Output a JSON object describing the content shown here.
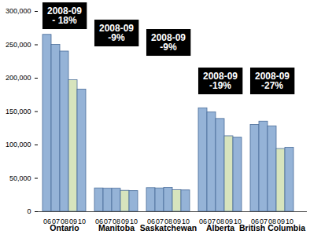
{
  "chart_data": {
    "type": "bar",
    "categories": [
      "Ontario",
      "Manitoba",
      "Saskatchewan",
      "Alberta",
      "British Columbia"
    ],
    "series": [
      {
        "name": "06",
        "color": "#95b3d7",
        "values": [
          265000,
          35000,
          35500,
          155000,
          130000
        ]
      },
      {
        "name": "07",
        "color": "#95b3d7",
        "values": [
          250000,
          34500,
          35000,
          149000,
          135000
        ]
      },
      {
        "name": "08",
        "color": "#95b3d7",
        "values": [
          240000,
          34500,
          36000,
          139000,
          128000
        ]
      },
      {
        "name": "09",
        "color": "#d7e4bd",
        "values": [
          197000,
          31500,
          32500,
          113000,
          94000
        ]
      },
      {
        "name": "10",
        "color": "#95b3d7",
        "values": [
          183000,
          31000,
          32000,
          111000,
          96000
        ]
      }
    ],
    "ylim": [
      0,
      300000
    ],
    "yticks": [
      0,
      {
        "value": 50000,
        "label": "50,000"
      },
      {
        "value": 100000,
        "label": "100,000"
      },
      {
        "value": 150000,
        "label": "150,000"
      },
      {
        "value": 200000,
        "label": "200,000"
      },
      {
        "value": 250000,
        "label": "250,000"
      },
      {
        "value": 300000,
        "label": "300,000"
      }
    ],
    "grid": false,
    "annotations": [
      {
        "category": "Ontario",
        "label": "2008-09\n- 18%"
      },
      {
        "category": "Manitoba",
        "label": "2008-09\n-9%"
      },
      {
        "category": "Saskatchewan",
        "label": "2008-09\n-9%"
      },
      {
        "category": "Alberta",
        "label": "2008-09\n-19%"
      },
      {
        "category": "British Columbia",
        "label": "2008-09\n-27%"
      }
    ]
  }
}
